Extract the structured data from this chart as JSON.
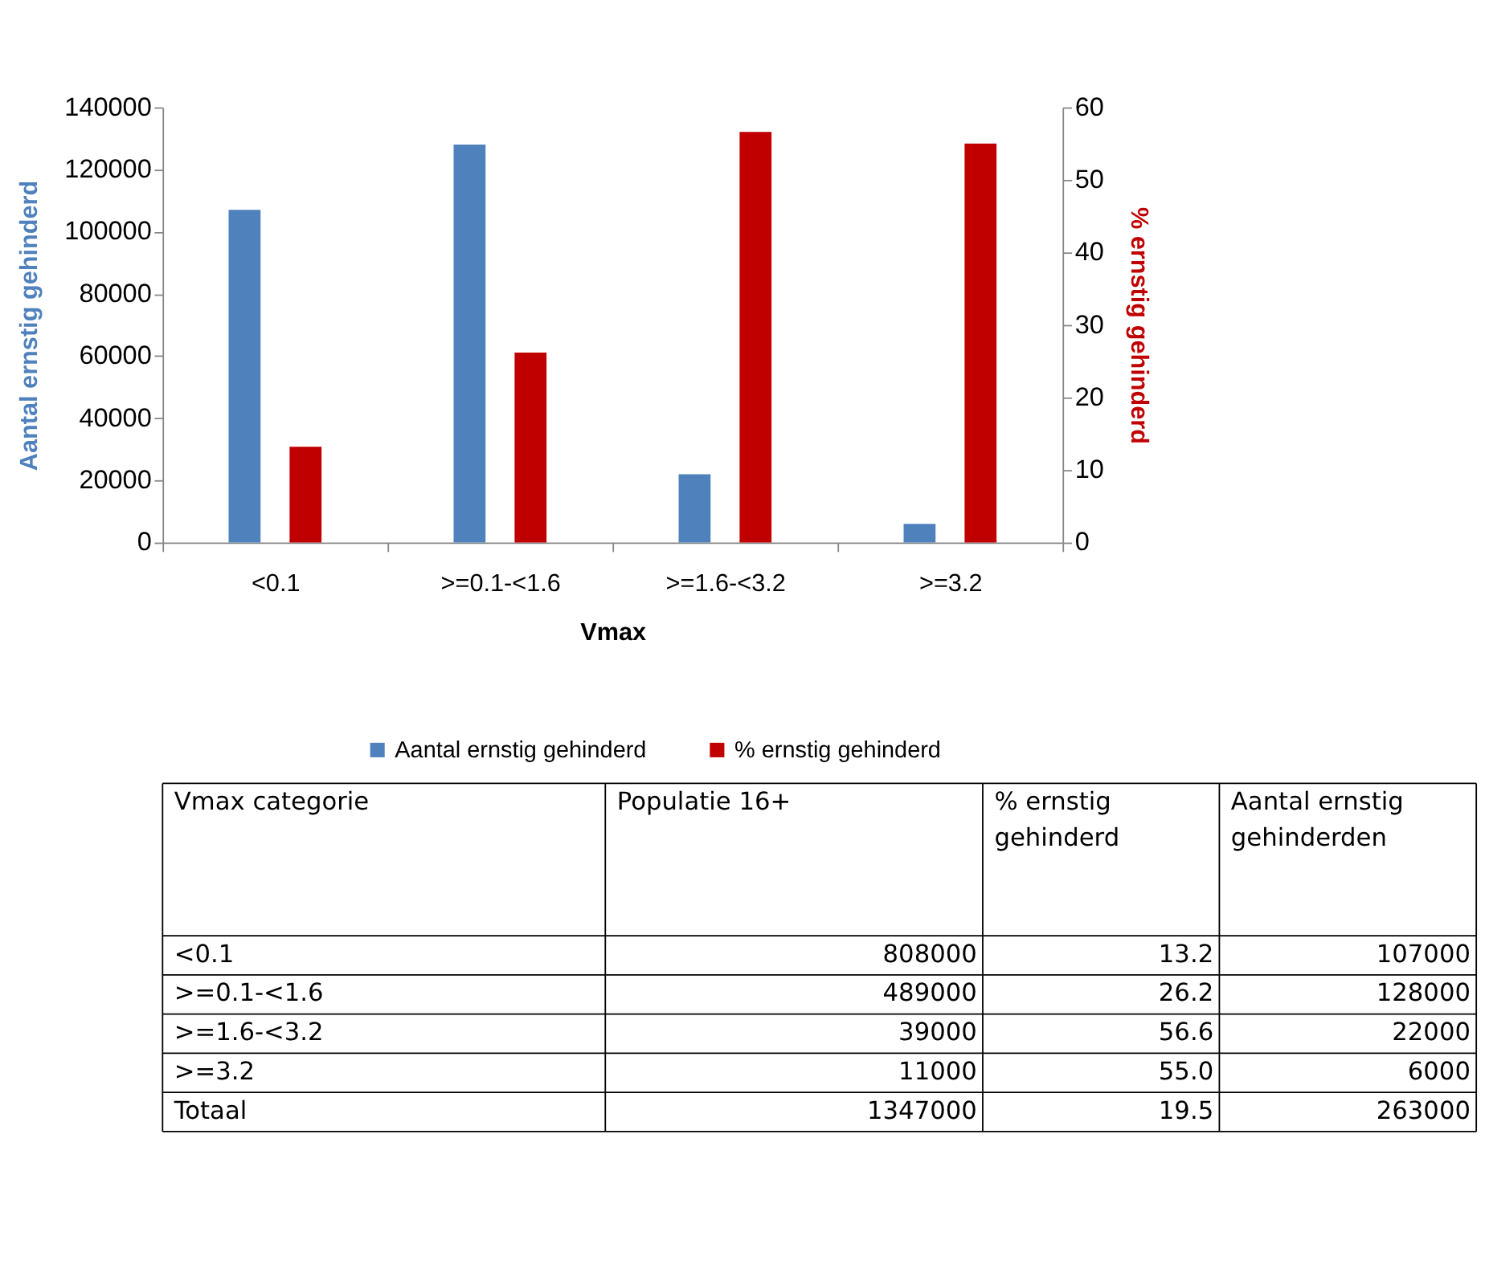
{
  "chart_data": {
    "type": "bar",
    "categories": [
      "<0.1",
      ">=0.1-<1.6",
      ">=1.6-<3.2",
      ">=3.2"
    ],
    "xlabel": "Vmax",
    "ylabel": "Aantal ernstig gehinderd",
    "y2label": "% ernstig gehinderd",
    "series": [
      {
        "name": "Aantal ernstig gehinderd",
        "color": "#4f81bd",
        "values": [
          107000,
          128000,
          22000,
          6000
        ]
      },
      {
        "name": "% ernstig gehinderd",
        "color": "#c00000",
        "axis": "y2",
        "values": [
          13.2,
          26.2,
          56.6,
          55.0
        ]
      }
    ],
    "ylim": [
      0,
      140000
    ],
    "yticks": [
      0,
      20000,
      40000,
      60000,
      80000,
      100000,
      120000,
      140000
    ],
    "y2lim": [
      0,
      60
    ],
    "y2ticks": [
      0,
      10,
      20,
      30,
      40,
      50,
      60
    ],
    "grid": false,
    "legend": "bottom",
    "annotations": [
      "Vmax categorie",
      "Populatie 16+",
      "% ernstig gehinderd",
      "Aantal ernstig gehinderden",
      "<0.1",
      "808000",
      "13.2",
      "107000",
      ">=0.1-<1.6",
      "489000",
      "26.2",
      "128000",
      ">=1.6-<3.2",
      "39000",
      "56.6",
      "22000",
      ">=3.2",
      "11000",
      "55.0",
      "6000",
      "Totaal",
      "1347000",
      "19.5",
      "263000"
    ]
  }
}
